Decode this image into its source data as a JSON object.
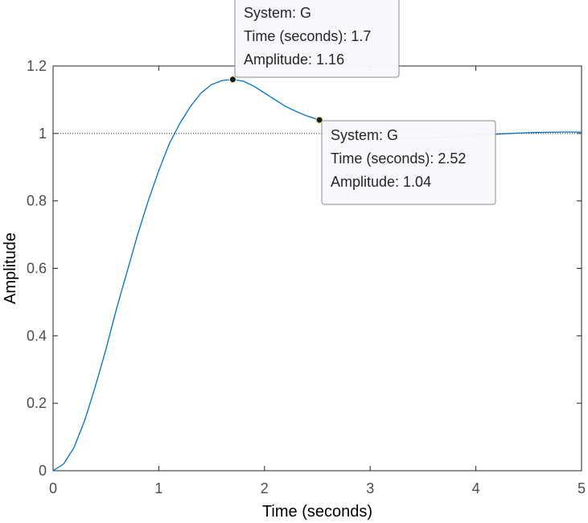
{
  "chart_data": {
    "type": "line",
    "title": "",
    "xlabel": "Time (seconds)",
    "ylabel": "Amplitude",
    "xlim": [
      0,
      5
    ],
    "ylim": [
      0,
      1.2
    ],
    "x_ticks": [
      "0",
      "1",
      "2",
      "3",
      "4",
      "5"
    ],
    "y_ticks": [
      "0",
      "0.2",
      "0.4",
      "0.6",
      "0.8",
      "1",
      "1.2"
    ],
    "grid": false,
    "reference_line": {
      "y": 1,
      "style": "dotted"
    },
    "series": [
      {
        "color": "#0072bd",
        "x": [
          0,
          0.1,
          0.2,
          0.3,
          0.4,
          0.5,
          0.6,
          0.7,
          0.8,
          0.9,
          1.0,
          1.1,
          1.2,
          1.3,
          1.4,
          1.5,
          1.6,
          1.7,
          1.8,
          1.9,
          2.0,
          2.1,
          2.2,
          2.3,
          2.4,
          2.52,
          2.6,
          2.7,
          2.8,
          2.9,
          3.0,
          3.2,
          3.4,
          3.6,
          3.8,
          4.0,
          4.2,
          4.4,
          4.6,
          4.8,
          5.0
        ],
        "y": [
          0,
          0.02,
          0.07,
          0.15,
          0.25,
          0.36,
          0.48,
          0.59,
          0.7,
          0.8,
          0.89,
          0.97,
          1.03,
          1.08,
          1.12,
          1.145,
          1.157,
          1.16,
          1.155,
          1.14,
          1.12,
          1.1,
          1.08,
          1.065,
          1.052,
          1.04,
          1.03,
          1.018,
          1.008,
          0.999,
          0.992,
          0.985,
          0.984,
          0.987,
          0.991,
          0.995,
          0.998,
          1.001,
          1.003,
          1.004,
          1.004
        ]
      }
    ],
    "datatips": [
      {
        "x": 1.7,
        "y": 1.16,
        "lines": [
          "System: G",
          "Time (seconds): 1.7",
          "Amplitude: 1.16"
        ]
      },
      {
        "x": 2.52,
        "y": 1.04,
        "lines": [
          "System: G",
          "Time (seconds): 2.52",
          "Amplitude: 1.04"
        ]
      }
    ]
  }
}
